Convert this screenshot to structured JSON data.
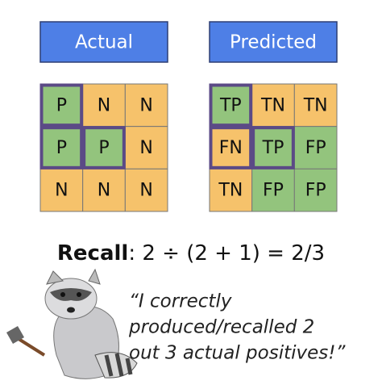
{
  "header": {
    "actual": "Actual",
    "predicted": "Predicted"
  },
  "grids": {
    "actual": {
      "cells": [
        [
          {
            "label": "P",
            "color": "#93c47d",
            "outlined": true
          },
          {
            "label": "N",
            "color": "#f6c26b",
            "outlined": false
          },
          {
            "label": "N",
            "color": "#f6c26b",
            "outlined": false
          }
        ],
        [
          {
            "label": "P",
            "color": "#93c47d",
            "outlined": true
          },
          {
            "label": "P",
            "color": "#93c47d",
            "outlined": true
          },
          {
            "label": "N",
            "color": "#f6c26b",
            "outlined": false
          }
        ],
        [
          {
            "label": "N",
            "color": "#f6c26b",
            "outlined": false
          },
          {
            "label": "N",
            "color": "#f6c26b",
            "outlined": false
          },
          {
            "label": "N",
            "color": "#f6c26b",
            "outlined": false
          }
        ]
      ]
    },
    "predicted": {
      "cells": [
        [
          {
            "label": "TP",
            "color": "#93c47d",
            "outlined": true
          },
          {
            "label": "TN",
            "color": "#f6c26b",
            "outlined": false
          },
          {
            "label": "TN",
            "color": "#f6c26b",
            "outlined": false
          }
        ],
        [
          {
            "label": "FN",
            "color": "#f6c26b",
            "outlined": true
          },
          {
            "label": "TP",
            "color": "#93c47d",
            "outlined": true
          },
          {
            "label": "FP",
            "color": "#93c47d",
            "outlined": false
          }
        ],
        [
          {
            "label": "TN",
            "color": "#f6c26b",
            "outlined": false
          },
          {
            "label": "FP",
            "color": "#93c47d",
            "outlined": false
          },
          {
            "label": "FP",
            "color": "#93c47d",
            "outlined": false
          }
        ]
      ]
    }
  },
  "recall": {
    "label": "Recall",
    "formula": ": 2 ÷ (2 + 1) = 2/3"
  },
  "quote": {
    "lines": [
      "“I correctly",
      "produced/recalled 2",
      "out 3 actual positives!”"
    ]
  }
}
